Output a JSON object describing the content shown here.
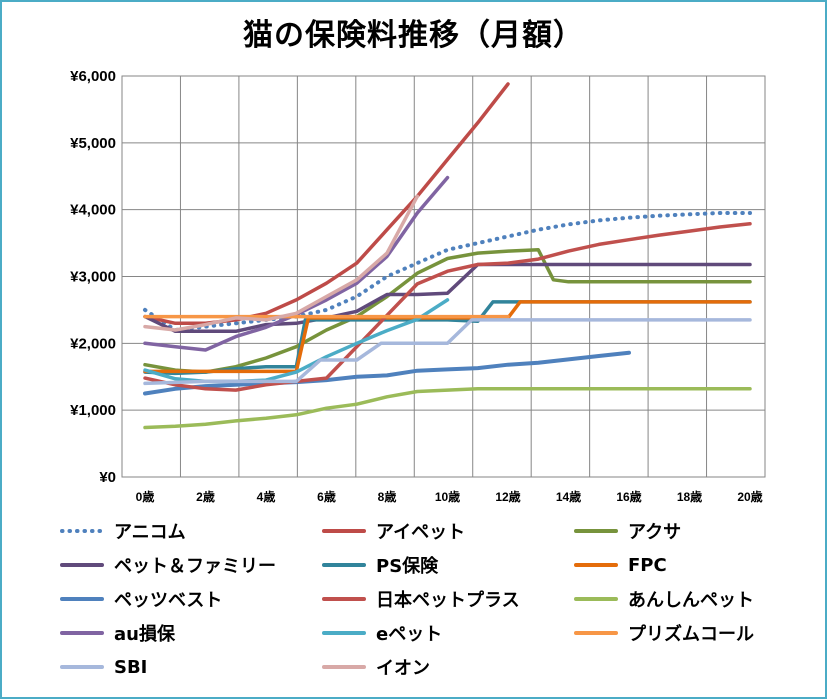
{
  "chart_data": {
    "type": "line",
    "title": "猫の保険料推移（月額）",
    "xlabel": "",
    "ylabel": "",
    "x_tick_labels": [
      "0歳",
      "2歳",
      "4歳",
      "6歳",
      "8歳",
      "10歳",
      "12歳",
      "14歳",
      "16歳",
      "18歳",
      "20歳"
    ],
    "y_tick_labels": [
      "¥0",
      "¥1,000",
      "¥2,000",
      "¥3,000",
      "¥4,000",
      "¥5,000",
      "¥6,000"
    ],
    "xlim": [
      0,
      20
    ],
    "ylim": [
      0,
      6000
    ],
    "grid": true,
    "legend_position": "bottom",
    "series": [
      {
        "name": "アニコム",
        "color": "#4f81bd",
        "dash": true,
        "points": [
          [
            0,
            2500
          ],
          [
            1,
            2200
          ],
          [
            2,
            2250
          ],
          [
            3,
            2300
          ],
          [
            4,
            2350
          ],
          [
            5,
            2400
          ],
          [
            6,
            2500
          ],
          [
            7,
            2700
          ],
          [
            8,
            3000
          ],
          [
            9,
            3200
          ],
          [
            10,
            3400
          ],
          [
            11,
            3500
          ],
          [
            12,
            3600
          ],
          [
            13,
            3700
          ],
          [
            14,
            3780
          ],
          [
            15,
            3840
          ],
          [
            16,
            3880
          ],
          [
            17,
            3910
          ],
          [
            18,
            3930
          ],
          [
            19,
            3950
          ],
          [
            20,
            3950
          ]
        ]
      },
      {
        "name": "アイペット",
        "color": "#be4b48",
        "points": [
          [
            0,
            2400
          ],
          [
            1,
            2300
          ],
          [
            2,
            2300
          ],
          [
            3,
            2350
          ],
          [
            4,
            2450
          ],
          [
            5,
            2650
          ],
          [
            6,
            2900
          ],
          [
            7,
            3200
          ],
          [
            8,
            3700
          ],
          [
            9,
            4200
          ],
          [
            10,
            4750
          ],
          [
            11,
            5300
          ],
          [
            12,
            5880
          ]
        ]
      },
      {
        "name": "アクサ",
        "color": "#77933c",
        "points": [
          [
            0,
            1680
          ],
          [
            1,
            1600
          ],
          [
            2,
            1570
          ],
          [
            3,
            1650
          ],
          [
            4,
            1780
          ],
          [
            5,
            1950
          ],
          [
            6,
            2200
          ],
          [
            7,
            2400
          ],
          [
            8,
            2700
          ],
          [
            9,
            3050
          ],
          [
            10,
            3270
          ],
          [
            11,
            3350
          ],
          [
            12,
            3380
          ],
          [
            13,
            3400
          ],
          [
            13.5,
            2950
          ],
          [
            14,
            2920
          ],
          [
            20,
            2920
          ]
        ]
      },
      {
        "name": "ペット＆ファミリー",
        "color": "#604a7b",
        "points": [
          [
            0,
            2400
          ],
          [
            1,
            2180
          ],
          [
            2,
            2180
          ],
          [
            3,
            2180
          ],
          [
            4,
            2280
          ],
          [
            5,
            2300
          ],
          [
            6,
            2380
          ],
          [
            7,
            2480
          ],
          [
            8,
            2730
          ],
          [
            9,
            2730
          ],
          [
            10,
            2750
          ],
          [
            11,
            3180
          ],
          [
            20,
            3180
          ]
        ]
      },
      {
        "name": "PS保険",
        "color": "#31849b",
        "points": [
          [
            0,
            1570
          ],
          [
            1,
            1550
          ],
          [
            2,
            1570
          ],
          [
            3,
            1620
          ],
          [
            4,
            1650
          ],
          [
            5,
            1650
          ],
          [
            5.3,
            2350
          ],
          [
            6,
            2350
          ],
          [
            10,
            2350
          ],
          [
            11,
            2330
          ],
          [
            11.5,
            2620
          ],
          [
            20,
            2620
          ]
        ]
      },
      {
        "name": "FPC",
        "color": "#e46c0a",
        "points": [
          [
            0,
            1580
          ],
          [
            2,
            1580
          ],
          [
            3,
            1580
          ],
          [
            4,
            1580
          ],
          [
            5,
            1580
          ],
          [
            5.4,
            2380
          ],
          [
            6,
            2380
          ],
          [
            12,
            2380
          ],
          [
            12.4,
            2620
          ],
          [
            20,
            2620
          ]
        ]
      },
      {
        "name": "ペッツベスト",
        "color": "#4f81bd",
        "strong": true,
        "points": [
          [
            0,
            1250
          ],
          [
            1,
            1320
          ],
          [
            2,
            1360
          ],
          [
            3,
            1380
          ],
          [
            4,
            1400
          ],
          [
            5,
            1420
          ],
          [
            6,
            1450
          ],
          [
            7,
            1500
          ],
          [
            8,
            1520
          ],
          [
            9,
            1590
          ],
          [
            10,
            1610
          ],
          [
            11,
            1630
          ],
          [
            12,
            1680
          ],
          [
            13,
            1710
          ],
          [
            14,
            1760
          ],
          [
            15,
            1810
          ],
          [
            16,
            1860
          ]
        ]
      },
      {
        "name": "日本ペットプラス",
        "color": "#c0504d",
        "points": [
          [
            0,
            1480
          ],
          [
            1,
            1380
          ],
          [
            2,
            1320
          ],
          [
            3,
            1300
          ],
          [
            4,
            1380
          ],
          [
            5,
            1430
          ],
          [
            6,
            1480
          ],
          [
            7,
            1950
          ],
          [
            8,
            2420
          ],
          [
            9,
            2890
          ],
          [
            10,
            3080
          ],
          [
            11,
            3180
          ],
          [
            12,
            3200
          ],
          [
            13,
            3260
          ],
          [
            14,
            3380
          ],
          [
            15,
            3480
          ],
          [
            16,
            3550
          ],
          [
            17,
            3620
          ],
          [
            18,
            3680
          ],
          [
            19,
            3740
          ],
          [
            20,
            3790
          ]
        ]
      },
      {
        "name": "あんしんペット",
        "color": "#9bbb59",
        "points": [
          [
            0,
            740
          ],
          [
            1,
            760
          ],
          [
            2,
            790
          ],
          [
            3,
            840
          ],
          [
            4,
            880
          ],
          [
            5,
            930
          ],
          [
            6,
            1030
          ],
          [
            7,
            1090
          ],
          [
            8,
            1200
          ],
          [
            9,
            1280
          ],
          [
            10,
            1300
          ],
          [
            11,
            1320
          ],
          [
            20,
            1320
          ]
        ]
      },
      {
        "name": "au損保",
        "color": "#8064a2",
        "points": [
          [
            0,
            2000
          ],
          [
            1,
            1950
          ],
          [
            2,
            1900
          ],
          [
            3,
            2100
          ],
          [
            4,
            2240
          ],
          [
            5,
            2430
          ],
          [
            6,
            2650
          ],
          [
            7,
            2900
          ],
          [
            8,
            3300
          ],
          [
            9,
            3950
          ],
          [
            10,
            4480
          ]
        ]
      },
      {
        "name": "eペット",
        "color": "#4bacc6",
        "points": [
          [
            0,
            1600
          ],
          [
            1,
            1470
          ],
          [
            2,
            1430
          ],
          [
            3,
            1430
          ],
          [
            4,
            1450
          ],
          [
            5,
            1570
          ],
          [
            6,
            1800
          ],
          [
            7,
            2000
          ],
          [
            8,
            2190
          ],
          [
            9,
            2360
          ],
          [
            10,
            2650
          ]
        ]
      },
      {
        "name": "プリズムコール",
        "color": "#f79646",
        "points": [
          [
            0,
            2400
          ],
          [
            1,
            2400
          ],
          [
            2,
            2400
          ],
          [
            3,
            2400
          ],
          [
            4,
            2400
          ],
          [
            5,
            2400
          ],
          [
            6,
            2400
          ],
          [
            7,
            2400
          ],
          [
            8,
            2400
          ],
          [
            9,
            2400
          ],
          [
            10,
            2400
          ],
          [
            11,
            2400
          ],
          [
            12,
            2400
          ]
        ]
      },
      {
        "name": "SBI",
        "color": "#a6b8dc",
        "points": [
          [
            0,
            1400
          ],
          [
            2,
            1430
          ],
          [
            5,
            1430
          ],
          [
            5.8,
            1750
          ],
          [
            7,
            1750
          ],
          [
            7.8,
            2000
          ],
          [
            10,
            2000
          ],
          [
            10.8,
            2350
          ],
          [
            20,
            2350
          ]
        ]
      },
      {
        "name": "イオン",
        "color": "#d8a9a7",
        "points": [
          [
            0,
            2250
          ],
          [
            1,
            2200
          ],
          [
            2,
            2280
          ],
          [
            3,
            2380
          ],
          [
            4,
            2350
          ],
          [
            5,
            2450
          ],
          [
            6,
            2700
          ],
          [
            7,
            2950
          ],
          [
            8,
            3350
          ],
          [
            9,
            4200
          ]
        ]
      }
    ]
  }
}
